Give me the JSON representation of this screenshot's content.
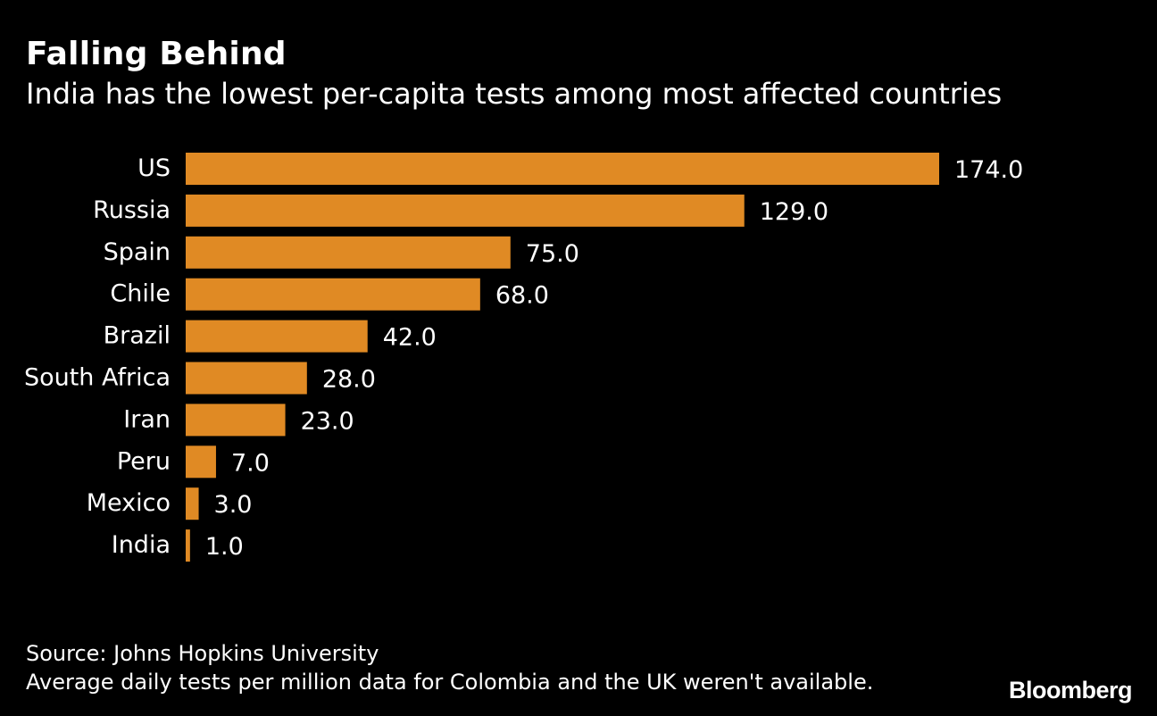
{
  "chart_data": {
    "type": "bar",
    "orientation": "horizontal",
    "title": "Falling Behind",
    "subtitle": "India has the lowest per-capita tests among most affected countries",
    "categories": [
      "US",
      "Russia",
      "Spain",
      "Chile",
      "Brazil",
      "South Africa",
      "Iran",
      "Peru",
      "Mexico",
      "India"
    ],
    "values": [
      174.0,
      129.0,
      75.0,
      68.0,
      42.0,
      28.0,
      23.0,
      7.0,
      3.0,
      1.0
    ],
    "value_labels": [
      "174.0",
      "129.0",
      "75.0",
      "68.0",
      "42.0",
      "28.0",
      "23.0",
      "7.0",
      "3.0",
      "1.0"
    ],
    "xlim": [
      0,
      174
    ],
    "bar_color": "#E08A24",
    "grid": false
  },
  "footer": {
    "source": "Source: Johns Hopkins University",
    "note": "Average daily tests per million data for Colombia and the UK weren't available."
  },
  "brand": {
    "logo_text": "Bloomberg"
  }
}
